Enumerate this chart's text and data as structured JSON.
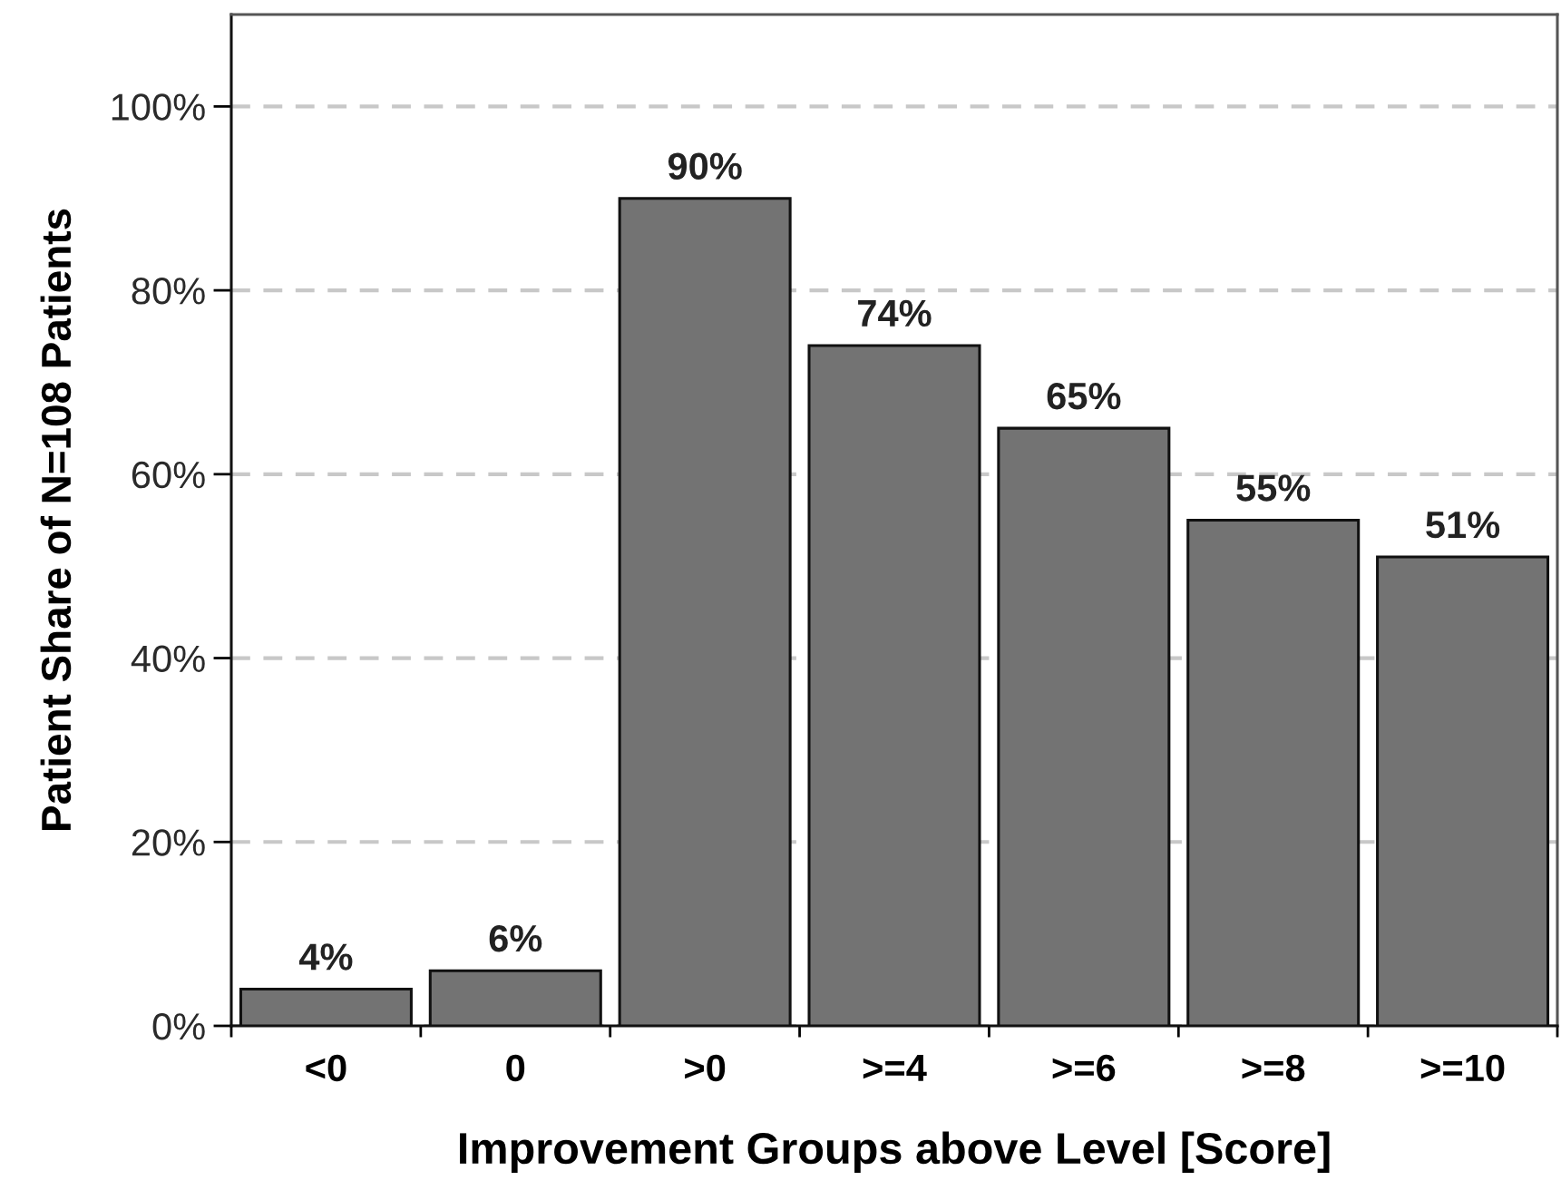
{
  "chart_data": {
    "type": "bar",
    "xlabel": "Improvement Groups above Level [Score]",
    "ylabel": "Patient Share of N=108 Patients",
    "categories": [
      "<0",
      "0",
      ">0",
      ">=4",
      ">=6",
      ">=8",
      ">=10"
    ],
    "values": [
      4,
      6,
      90,
      74,
      65,
      55,
      51
    ],
    "value_labels": [
      "4%",
      "6%",
      "90%",
      "74%",
      "65%",
      "55%",
      "51%"
    ],
    "color": "#737373",
    "ylim": [
      0,
      110
    ],
    "yticks": [
      {
        "value": 0,
        "label": "0%"
      },
      {
        "value": 20,
        "label": "20%"
      },
      {
        "value": 40,
        "label": "40%"
      },
      {
        "value": 60,
        "label": "60%"
      },
      {
        "value": 80,
        "label": "80%"
      },
      {
        "value": 100,
        "label": "100%"
      }
    ],
    "grid": "y"
  }
}
